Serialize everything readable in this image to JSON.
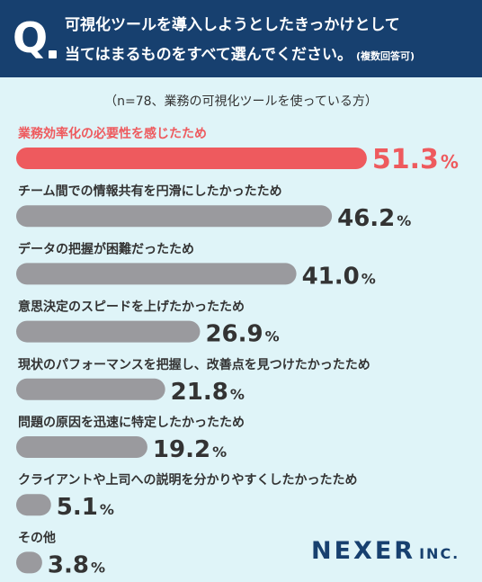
{
  "header": {
    "q_mark": "Q",
    "line1": "可視化ツールを導入しようとしたきっかけとして",
    "line2": "当てはまるものをすべて選んでください。",
    "note": "(複数回答可)"
  },
  "sample_note": "（n=78、業務の可視化ツールを使っている方）",
  "logo": {
    "main": "NEXER",
    "inc": "INC."
  },
  "colors": {
    "highlight": "#ee5a5e",
    "bar": "#9a9a9e",
    "header": "#17406f",
    "background": "#dff4f8"
  },
  "chart_data": {
    "type": "bar",
    "orientation": "horizontal",
    "unit": "%",
    "categories": [
      "業務効率化の必要性を感じたため",
      "チーム間での情報共有を円滑にしたかったため",
      "データの把握が困難だったため",
      "意思決定のスピードを上げたかったため",
      "現状のパフォーマンスを把握し、改善点を見つけたかったため",
      "問題の原因を迅速に特定したかったため",
      "クライアントや上司への説明を分かりやすくしたかったため",
      "その他"
    ],
    "values": [
      51.3,
      46.2,
      41.0,
      26.9,
      21.8,
      19.2,
      5.1,
      3.8
    ],
    "value_labels": [
      "51.3",
      "46.2",
      "41.0",
      "26.9",
      "21.8",
      "19.2",
      "5.1",
      "3.8"
    ],
    "highlight_index": 0
  }
}
